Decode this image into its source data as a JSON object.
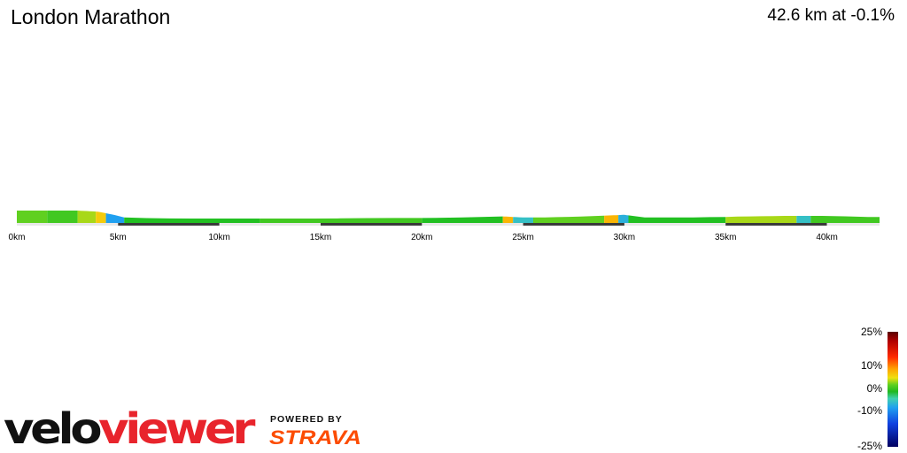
{
  "header": {
    "title": "London Marathon",
    "summary": "42.6 km at -0.1%"
  },
  "chart_data": {
    "type": "area",
    "title": "London Marathon",
    "subtitle": "42.6 km at -0.1%",
    "xlabel": "",
    "ylabel": "",
    "x_unit": "km",
    "xlim": [
      0,
      42.6
    ],
    "x_ticks": [
      0,
      5,
      10,
      15,
      20,
      25,
      30,
      35,
      40
    ],
    "x_tick_labels": [
      "0km",
      "5km",
      "10km",
      "15km",
      "20km",
      "25km",
      "30km",
      "35km",
      "40km"
    ],
    "elevation_relative": {
      "x": [
        0,
        1,
        2,
        3,
        4,
        4.8,
        5.3,
        6,
        8,
        10,
        12,
        15,
        18,
        20,
        22,
        24,
        25,
        26,
        28,
        30,
        31,
        33,
        35,
        36,
        38,
        40,
        41,
        42,
        42.6
      ],
      "y": [
        1.0,
        1.0,
        1.0,
        1.0,
        0.9,
        0.6,
        0.35,
        0.3,
        0.25,
        0.25,
        0.25,
        0.25,
        0.3,
        0.3,
        0.35,
        0.45,
        0.35,
        0.35,
        0.45,
        0.6,
        0.35,
        0.35,
        0.4,
        0.45,
        0.5,
        0.5,
        0.45,
        0.4,
        0.4
      ]
    },
    "grade_segments": [
      {
        "from": 0,
        "to": 1.5,
        "grade": 2
      },
      {
        "from": 1.5,
        "to": 3.0,
        "grade": 1
      },
      {
        "from": 3.0,
        "to": 3.9,
        "grade": 3
      },
      {
        "from": 3.9,
        "to": 4.4,
        "grade": 5
      },
      {
        "from": 4.4,
        "to": 5.3,
        "grade": -6
      },
      {
        "from": 5.3,
        "to": 12.0,
        "grade": 0
      },
      {
        "from": 12.0,
        "to": 20.0,
        "grade": 1
      },
      {
        "from": 20.0,
        "to": 24.0,
        "grade": 0
      },
      {
        "from": 24.0,
        "to": 24.5,
        "grade": 6
      },
      {
        "from": 24.5,
        "to": 25.5,
        "grade": -4
      },
      {
        "from": 25.5,
        "to": 29.0,
        "grade": 2
      },
      {
        "from": 29.0,
        "to": 29.7,
        "grade": 6
      },
      {
        "from": 29.7,
        "to": 30.2,
        "grade": -5
      },
      {
        "from": 30.2,
        "to": 35.0,
        "grade": 0
      },
      {
        "from": 35.0,
        "to": 38.5,
        "grade": 3
      },
      {
        "from": 38.5,
        "to": 39.2,
        "grade": -4
      },
      {
        "from": 39.2,
        "to": 42.6,
        "grade": 1
      }
    ],
    "distance_bands": [
      [
        5,
        10
      ],
      [
        15,
        20
      ],
      [
        25,
        30
      ],
      [
        35,
        40
      ]
    ],
    "legend": {
      "position": "bottom-right",
      "labels": [
        "25%",
        "10%",
        "0%",
        "-10%",
        "-25%"
      ],
      "values": [
        25,
        10,
        0,
        -10,
        -25
      ]
    },
    "grid": false
  },
  "legend_labels": [
    "25%",
    "10%",
    "0%",
    "-10%",
    "-25%"
  ],
  "branding": {
    "velo_part": "velo",
    "viewer_part": "viewer",
    "powered_by": "POWERED BY",
    "strava": "STRAVA",
    "colors": {
      "red": "#e8242c",
      "orange": "#fc4c02",
      "dark": "#111111"
    }
  },
  "colors": {
    "band": "#3a3a3a",
    "baseline": "#e8e8e8",
    "zero_grade": "#22c022"
  }
}
